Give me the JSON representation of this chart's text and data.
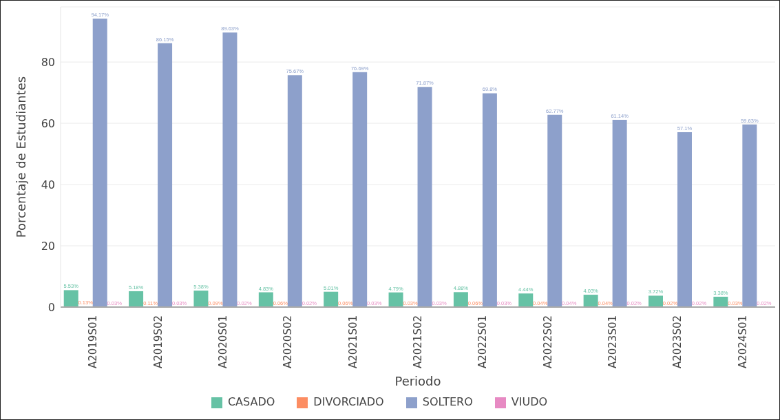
{
  "chart_data": {
    "type": "bar",
    "xlabel": "Periodo",
    "ylabel": "Porcentaje de Estudiantes",
    "categories": [
      "A2019S01",
      "A2019S02",
      "A2020S01",
      "A2020S02",
      "A2021S01",
      "A2021S02",
      "A2022S01",
      "A2022S02",
      "A2023S01",
      "A2023S02",
      "A2024S01"
    ],
    "series": [
      {
        "name": "CASADO",
        "color": "#66c2a5",
        "values": [
          5.53,
          5.18,
          5.38,
          4.83,
          5.01,
          4.79,
          4.88,
          4.44,
          4.03,
          3.72,
          3.38
        ],
        "value_labels": [
          "5.53%",
          "5.18%",
          "5.38%",
          "4.83%",
          "5.01%",
          "4.79%",
          "4.88%",
          "4.44%",
          "4.03%",
          "3.72%",
          "3.38%"
        ]
      },
      {
        "name": "DIVORCIADO",
        "color": "#fc8d62",
        "values": [
          0.13,
          0.11,
          0.09,
          0.06,
          0.06,
          0.03,
          0.06,
          0.04,
          0.04,
          0.02,
          0.03
        ],
        "value_labels": [
          "0.13%",
          "0.11%",
          "0.09%",
          "0.06%",
          "0.06%",
          "0.03%",
          "0.06%",
          "0.04%",
          "0.04%",
          "0.02%",
          "0.03%"
        ]
      },
      {
        "name": "SOLTERO",
        "color": "#8da0cb",
        "values": [
          94.17,
          86.15,
          89.63,
          75.67,
          76.69,
          71.87,
          69.8,
          62.77,
          61.14,
          57.1,
          59.63
        ],
        "value_labels": [
          "94.17%",
          "86.15%",
          "89.63%",
          "75.67%",
          "76.69%",
          "71.87%",
          "69.8%",
          "62.77%",
          "61.14%",
          "57.1%",
          "59.63%"
        ]
      },
      {
        "name": "VIUDO",
        "color": "#e78ac3",
        "values": [
          0.03,
          0.03,
          0.02,
          0.02,
          0.03,
          0.03,
          0.03,
          0.04,
          0.02,
          0.02,
          0.02
        ],
        "value_labels": [
          "0.03%",
          "0.03%",
          "0.02%",
          "0.02%",
          "0.03%",
          "0.03%",
          "0.03%",
          "0.04%",
          "0.02%",
          "0.02%",
          "0.02%"
        ]
      }
    ],
    "ylim": [
      0,
      98
    ],
    "yticks": [
      0,
      20,
      40,
      60,
      80
    ],
    "grid": "y",
    "legend": "bottom"
  }
}
